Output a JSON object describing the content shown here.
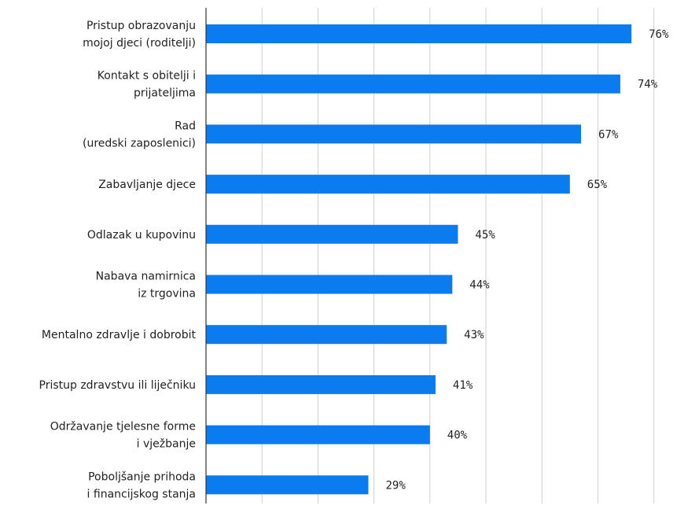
{
  "chart_data": {
    "type": "bar",
    "orientation": "horizontal",
    "title": "",
    "xlabel": "",
    "ylabel": "",
    "categories": [
      [
        "Pristup obrazovanju",
        "mojoj djeci (roditelji)"
      ],
      [
        "Kontakt s obitelji i",
        "prijateljima"
      ],
      [
        "Rad",
        "(uredski zaposlenici)"
      ],
      [
        "Zabavljanje djece"
      ],
      [
        "Odlazak u kupovinu"
      ],
      [
        "Nabava namirnica",
        "iz trgovina"
      ],
      [
        "Mentalno zdravlje i dobrobit"
      ],
      [
        "Pristup zdravstvu ili liječniku"
      ],
      [
        "Održavanje tjelesne forme",
        "i vježbanje"
      ],
      [
        "Poboljšanje prihoda",
        "i financijskog stanja"
      ]
    ],
    "values": [
      76,
      74,
      67,
      65,
      45,
      44,
      43,
      41,
      40,
      29
    ],
    "value_labels": [
      "76%",
      "74%",
      "67%",
      "65%",
      "45%",
      "44%",
      "43%",
      "41%",
      "40%",
      "29%"
    ],
    "unit": "%",
    "xlim": [
      0,
      80
    ],
    "grid": true,
    "bar_color": "#0a7cf0",
    "grid_color": "#d0d0d0",
    "text_color": "#222222"
  }
}
